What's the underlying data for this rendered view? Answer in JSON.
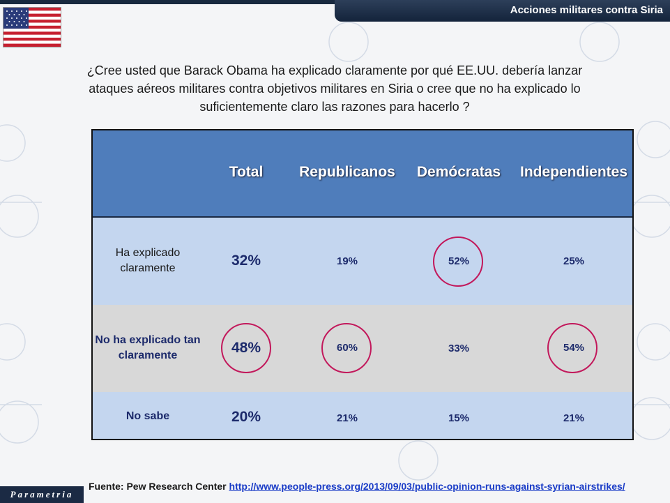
{
  "header": {
    "title": "Acciones militares contra Siria"
  },
  "question": "¿Cree usted que Barack Obama ha explicado claramente por qué EE.UU. debería lanzar ataques aéreos militares contra objetivos militares en Siria o cree que no ha explicado lo suficientemente claro las razones para hacerlo ?",
  "table": {
    "columns": [
      "Total",
      "Republicanos",
      "Demócratas",
      "Independientes"
    ],
    "rows": [
      {
        "label": "Ha explicado claramente",
        "values": [
          "32%",
          "19%",
          "52%",
          "25%"
        ]
      },
      {
        "label": "No ha explicado tan claramente",
        "values": [
          "48%",
          "60%",
          "33%",
          "54%"
        ]
      },
      {
        "label": "No sabe",
        "values": [
          "20%",
          "21%",
          "15%",
          "21%"
        ]
      }
    ]
  },
  "source": {
    "prefix": "Fuente: Pew Research Center",
    "url": "http://www.people-press.org/2013/09/03/public-opinion-runs-against-syrian-airstrikes/"
  },
  "logo": {
    "text": "Parametria"
  },
  "colors": {
    "header_blue": "#4f7dbb",
    "highlight": "#c2185b",
    "dark_navy": "#1b2a44"
  }
}
